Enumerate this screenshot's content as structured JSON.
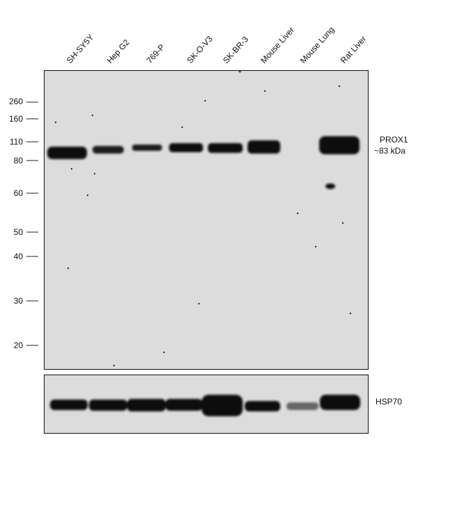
{
  "lanes": [
    "SH-SY5Y",
    "Hep G2",
    "769-P",
    "SK-O-V3",
    "SK-BR-3",
    "Mouse Liver",
    "Mouse Lung",
    "Rat Liver"
  ],
  "markers": [
    "260",
    "160",
    "110",
    "80",
    "60",
    "50",
    "40",
    "30",
    "20"
  ],
  "top_panel": {
    "label": "PROX1",
    "sublabel": "~83 kDa"
  },
  "bottom_panel": {
    "label": "HSP70"
  }
}
